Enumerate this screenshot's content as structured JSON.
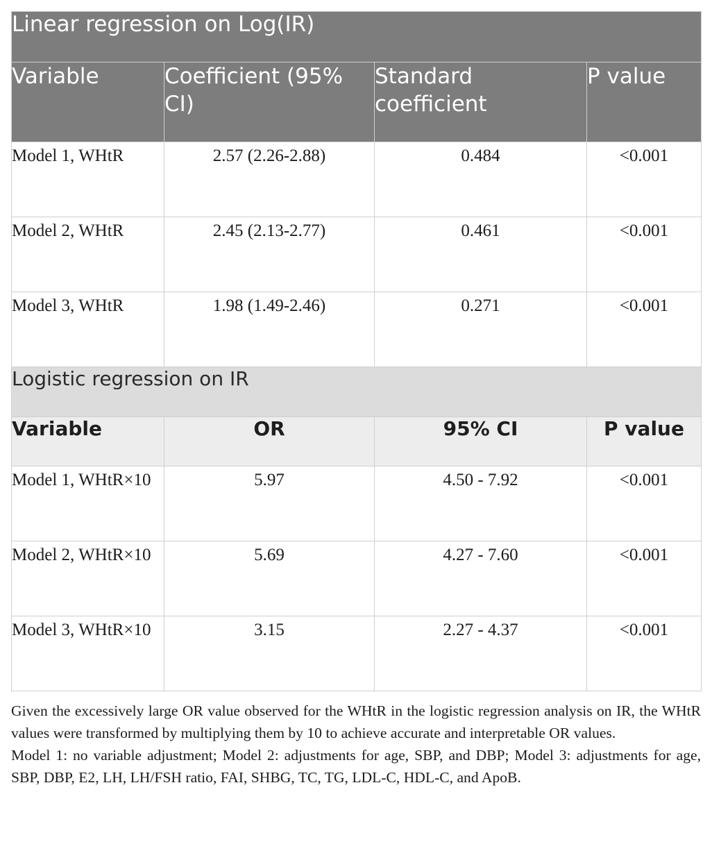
{
  "linear": {
    "title": "Linear regression on Log(IR)",
    "headers": [
      "Variable",
      "Coefficient (95% CI)",
      "Standard coefficient",
      "P value"
    ],
    "rows": [
      {
        "variable": "Model 1, WHtR",
        "coef": "2.57 (2.26-2.88)",
        "std": "0.484",
        "p": "<0.001"
      },
      {
        "variable": "Model 2, WHtR",
        "coef": "2.45 (2.13-2.77)",
        "std": "0.461",
        "p": "<0.001"
      },
      {
        "variable": "Model 3, WHtR",
        "coef": "1.98 (1.49-2.46)",
        "std": "0.271",
        "p": "<0.001"
      }
    ]
  },
  "logistic": {
    "title": "Logistic regression on IR",
    "headers": [
      "Variable",
      "OR",
      "95% CI",
      "P value"
    ],
    "rows": [
      {
        "variable": "Model 1, WHtR×10",
        "or": "5.97",
        "ci": "4.50 - 7.92",
        "p": "<0.001"
      },
      {
        "variable": "Model 2, WHtR×10",
        "or": "5.69",
        "ci": "4.27 - 7.60",
        "p": "<0.001"
      },
      {
        "variable": "Model 3, WHtR×10",
        "or": "3.15",
        "ci": "2.27 - 4.37",
        "p": "<0.001"
      }
    ]
  },
  "footnotes": [
    "Given the excessively large OR value observed for the WHtR in the logistic regression analysis on IR, the WHtR values were transformed by multiplying them by 10 to achieve accurate and interpretable OR values.",
    "Model 1: no variable adjustment; Model 2: adjustments for age, SBP, and DBP; Model 3: adjustments for age, SBP, DBP, E2, LH, LH/FSH ratio, FAI, SHBG, TC, TG, LDL-C, HDL-C, and ApoB."
  ]
}
